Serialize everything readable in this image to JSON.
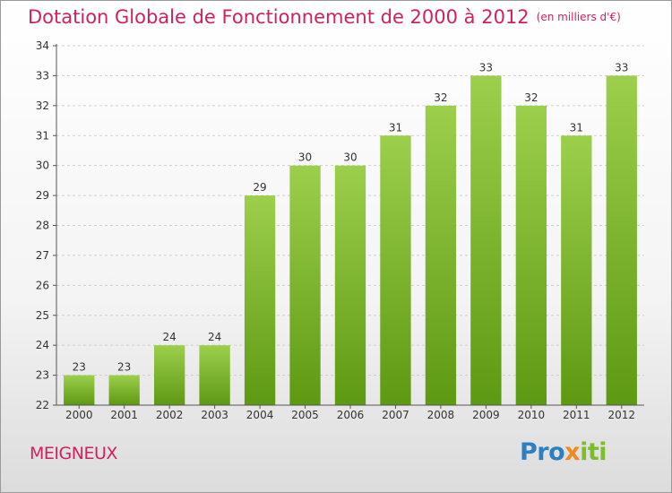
{
  "title": "Dotation Globale de Fonctionnement de 2000 à 2012",
  "unit_note": "(en milliers d'€)",
  "commune": "MEIGNEUX",
  "logo": {
    "part1": "Pro",
    "part2": "x",
    "part3": "iti"
  },
  "colors": {
    "title": "#d0215f",
    "bar_top": "#9ccf4c",
    "bar_bottom": "#5e9912",
    "grid": "#cfcfcf"
  },
  "chart_data": {
    "type": "bar",
    "title": "Dotation Globale de Fonctionnement de 2000 à 2012",
    "subtitle": "(en milliers d'€)",
    "xlabel": "",
    "ylabel": "",
    "categories": [
      "2000",
      "2001",
      "2002",
      "2003",
      "2004",
      "2005",
      "2006",
      "2007",
      "2008",
      "2009",
      "2010",
      "2011",
      "2012"
    ],
    "values": [
      23,
      23,
      24,
      24,
      29,
      30,
      30,
      31,
      32,
      33,
      32,
      31,
      33
    ],
    "ylim": [
      22,
      34
    ],
    "yticks": [
      22,
      23,
      24,
      25,
      26,
      27,
      28,
      29,
      30,
      31,
      32,
      33,
      34
    ],
    "grid": "horizontal",
    "legend": "none"
  }
}
